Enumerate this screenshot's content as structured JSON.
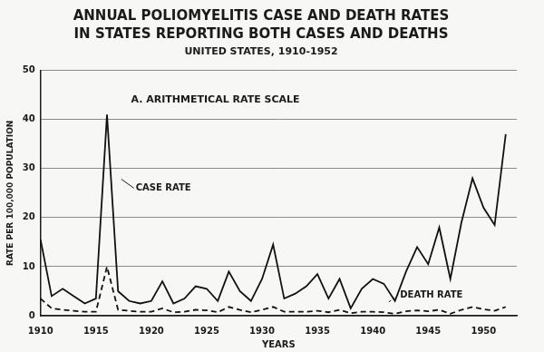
{
  "chart_data": {
    "type": "line",
    "title": [
      "ANNUAL POLIOMYELITIS CASE AND DEATH RATES",
      "IN STATES REPORTING BOTH CASES AND DEATHS"
    ],
    "subtitle": "UNITED STATES, 1910-1952",
    "annotations": [
      "A. ARITHMETICAL RATE SCALE"
    ],
    "x_label": "YEARS",
    "y_label": "RATE PER 100,000 POPULATION",
    "x": [
      1910,
      1911,
      1912,
      1913,
      1914,
      1915,
      1916,
      1917,
      1918,
      1919,
      1920,
      1921,
      1922,
      1923,
      1924,
      1925,
      1926,
      1927,
      1928,
      1929,
      1930,
      1931,
      1932,
      1933,
      1934,
      1935,
      1936,
      1937,
      1938,
      1939,
      1940,
      1941,
      1942,
      1943,
      1944,
      1945,
      1946,
      1947,
      1948,
      1949,
      1950,
      1951,
      1952
    ],
    "series": [
      {
        "name": "CASE RATE",
        "color": "#111111",
        "line_style": "solid",
        "values": [
          15.5,
          4,
          5.5,
          4,
          2.5,
          3.5,
          41,
          5,
          3,
          2.5,
          3,
          7,
          2.5,
          3.5,
          6,
          5.5,
          3,
          9,
          5,
          3,
          7.5,
          14.5,
          3.5,
          4.5,
          6,
          8.5,
          3.5,
          7.5,
          1.5,
          5.5,
          7.5,
          6.5,
          3,
          9,
          14,
          10.5,
          18,
          7.5,
          19,
          28,
          22,
          18.5,
          37
        ]
      },
      {
        "name": "DEATH RATE",
        "color": "#111111",
        "line_style": "dashed",
        "values": [
          3.5,
          1.5,
          1.2,
          1,
          0.8,
          0.8,
          10,
          1.2,
          1,
          0.8,
          0.8,
          1.5,
          0.7,
          0.8,
          1.2,
          1.1,
          0.7,
          1.8,
          1.2,
          0.7,
          1.2,
          1.8,
          0.8,
          0.8,
          0.8,
          1,
          0.7,
          1.2,
          0.5,
          0.8,
          0.8,
          0.7,
          0.4,
          0.9,
          1.1,
          0.9,
          1.2,
          0.4,
          1.2,
          1.8,
          1.3,
          1,
          1.8
        ]
      }
    ],
    "xlim": [
      1910,
      1953
    ],
    "xticks": [
      1910,
      1915,
      1920,
      1925,
      1930,
      1935,
      1940,
      1945,
      1950
    ],
    "ylim": [
      0,
      50
    ],
    "yticks": [
      0,
      10,
      20,
      30,
      40,
      50
    ],
    "grid": true
  }
}
